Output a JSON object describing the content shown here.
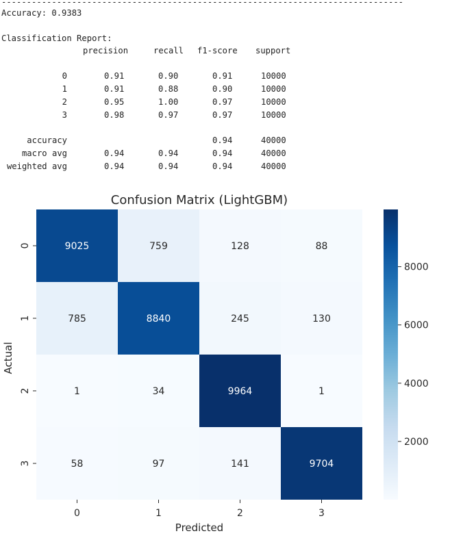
{
  "console": {
    "dashes": "--------------------------------------------------------------------------------",
    "accuracy_line": "Accuracy: 0.9383",
    "report_title": "Classification Report:",
    "headers": [
      "precision",
      "recall",
      "f1-score",
      "support"
    ],
    "rows": [
      {
        "label": "0",
        "precision": "0.91",
        "recall": "0.90",
        "f1": "0.91",
        "support": "10000"
      },
      {
        "label": "1",
        "precision": "0.91",
        "recall": "0.88",
        "f1": "0.90",
        "support": "10000"
      },
      {
        "label": "2",
        "precision": "0.95",
        "recall": "1.00",
        "f1": "0.97",
        "support": "10000"
      },
      {
        "label": "3",
        "precision": "0.98",
        "recall": "0.97",
        "f1": "0.97",
        "support": "10000"
      },
      {
        "label": "accuracy",
        "precision": "",
        "recall": "",
        "f1": "0.94",
        "support": "40000"
      },
      {
        "label": "macro avg",
        "precision": "0.94",
        "recall": "0.94",
        "f1": "0.94",
        "support": "40000"
      },
      {
        "label": "weighted avg",
        "precision": "0.94",
        "recall": "0.94",
        "f1": "0.94",
        "support": "40000"
      }
    ]
  },
  "chart_data": {
    "type": "heatmap",
    "title": "Confusion Matrix (LightGBM)",
    "xlabel": "Predicted",
    "ylabel": "Actual",
    "x_categories": [
      "0",
      "1",
      "2",
      "3"
    ],
    "y_categories": [
      "0",
      "1",
      "2",
      "3"
    ],
    "matrix": [
      [
        9025,
        759,
        128,
        88
      ],
      [
        785,
        8840,
        245,
        130
      ],
      [
        1,
        34,
        9964,
        1
      ],
      [
        58,
        97,
        141,
        9704
      ]
    ],
    "colormap": "Blues",
    "vmin": 1,
    "vmax": 9964,
    "colorbar_ticks": [
      2000,
      4000,
      6000,
      8000
    ],
    "colors": {
      "low": "#f7fbff",
      "high": "#08306b"
    }
  }
}
